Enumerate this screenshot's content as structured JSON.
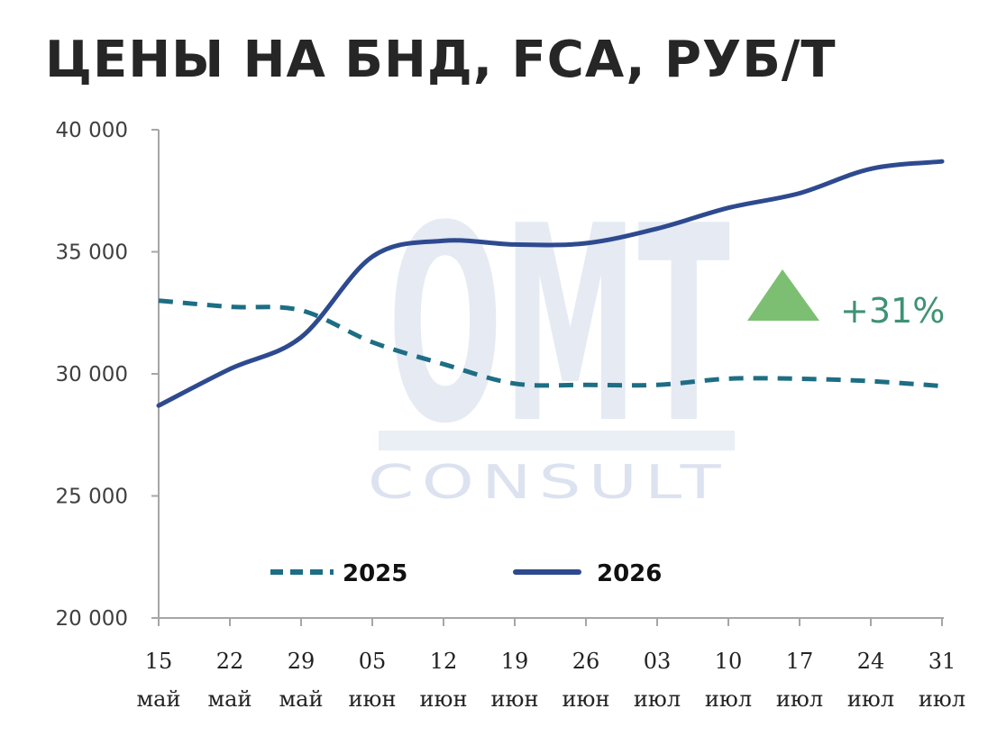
{
  "title": "ЦЕНЫ НА БНД, FCA, РУБ/Т",
  "watermark": {
    "big": "OMT",
    "small": "CONSULT"
  },
  "annotation": {
    "text": "+31%",
    "icon": "triangle-up-icon",
    "color": "#7dbf72",
    "text_color": "#3f9274"
  },
  "chart_data": {
    "type": "line",
    "title": "ЦЕНЫ НА БНД, FCA, РУБ/Т",
    "x": [
      [
        "15",
        "май"
      ],
      [
        "22",
        "май"
      ],
      [
        "29",
        "май"
      ],
      [
        "05",
        "июн"
      ],
      [
        "12",
        "июн"
      ],
      [
        "19",
        "июн"
      ],
      [
        "26",
        "июн"
      ],
      [
        "03",
        "июл"
      ],
      [
        "10",
        "июл"
      ],
      [
        "17",
        "июл"
      ],
      [
        "24",
        "июл"
      ],
      [
        "31",
        "июл"
      ]
    ],
    "y_ticks": [
      "20 000",
      "25 000",
      "30 000",
      "35 000",
      "40 000"
    ],
    "ylim": [
      20000,
      40000
    ],
    "grid": false,
    "legend_position": "bottom",
    "series": [
      {
        "name": "2025",
        "style": "dashed",
        "color": "#1d6e84",
        "values": [
          33000,
          32750,
          32600,
          31300,
          30400,
          29600,
          29550,
          29550,
          29800,
          29800,
          29700,
          29500
        ]
      },
      {
        "name": "2026",
        "style": "solid",
        "color": "#2e4a8f",
        "values": [
          28700,
          30200,
          31500,
          34800,
          35450,
          35300,
          35350,
          35950,
          36800,
          37400,
          38400,
          38700
        ]
      }
    ]
  }
}
